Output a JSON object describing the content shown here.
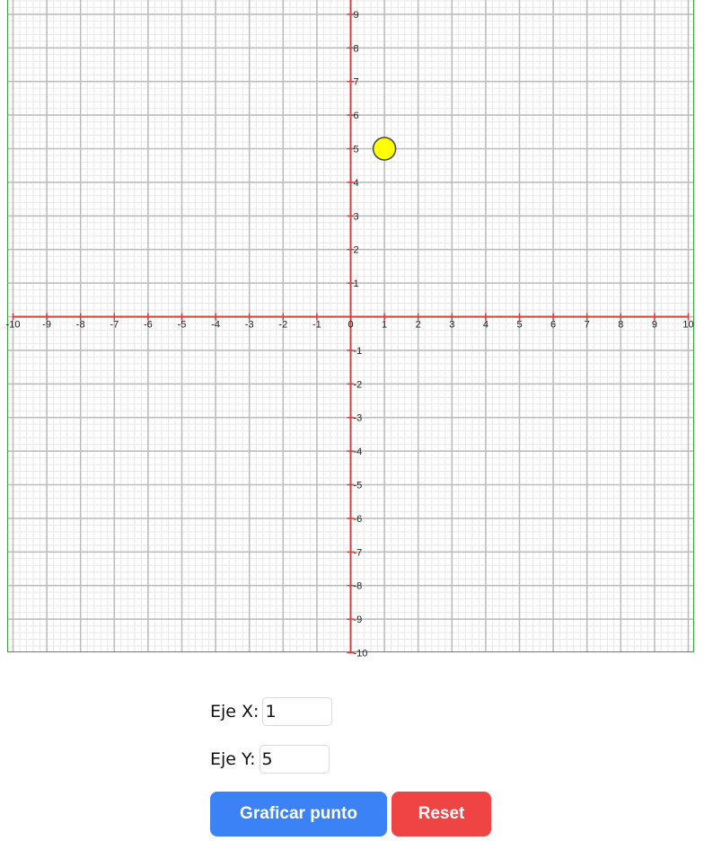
{
  "colors": {
    "axis": "#e33b3b",
    "major_grid": "#bdbdbd",
    "minor_grid": "#e8e8e8",
    "point_fill": "#ffff00",
    "point_stroke": "#444444",
    "plot_border": "#3aa13a",
    "plot_button": "#3b82f6",
    "reset_button": "#ef4444"
  },
  "chart_data": {
    "type": "scatter",
    "title": "",
    "xlabel": "",
    "ylabel": "",
    "xlim": [
      -10,
      10
    ],
    "ylim": [
      -10,
      10
    ],
    "grid": true,
    "x_ticks": [
      "-10",
      "-9",
      "-8",
      "-7",
      "-6",
      "-5",
      "-4",
      "-3",
      "-2",
      "-1",
      "0",
      "1",
      "2",
      "3",
      "4",
      "5",
      "6",
      "7",
      "8",
      "9",
      "10"
    ],
    "y_ticks": [
      "-10",
      "-9",
      "-8",
      "-7",
      "-6",
      "-5",
      "-4",
      "-3",
      "-2",
      "-1",
      "1",
      "2",
      "3",
      "4",
      "5",
      "6",
      "7",
      "8",
      "9"
    ],
    "series": [
      {
        "points": [
          {
            "x": 1,
            "y": 5
          }
        ]
      }
    ]
  },
  "form": {
    "x_label": "Eje X:",
    "x_value": "1",
    "y_label": "Eje Y:",
    "y_value": "5",
    "plot_button": "Graficar punto",
    "reset_button": "Reset"
  }
}
